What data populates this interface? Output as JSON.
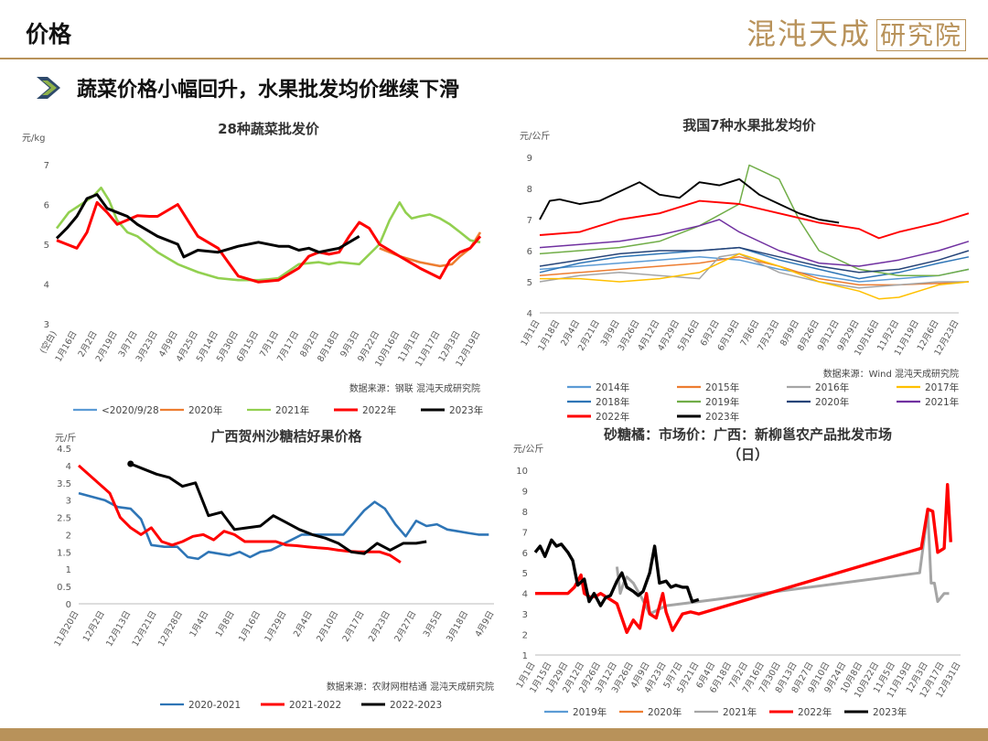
{
  "header": {
    "title": "价格",
    "logo_text": "混沌天成",
    "logo_box": "研究院"
  },
  "subheading": "蔬菜价格小幅回升，水果批发均价继续下滑",
  "colors": {
    "accent": "#b8925a",
    "title_text": "#111111",
    "arrow": "#2e4a6b"
  },
  "chart_data": [
    {
      "type": "line",
      "title": "28种蔬菜批发价",
      "ylabel": "元/kg",
      "ylim": [
        3,
        7
      ],
      "yticks": [
        "3",
        "4",
        "5",
        "6",
        "7"
      ],
      "x_tick_labels": [
        "(空白)",
        "1月16日",
        "2月2日",
        "2月19日",
        "3月7日",
        "3月23日",
        "4月9日",
        "4月25日",
        "5月14日",
        "5月30日",
        "6月15日",
        "7月1日",
        "7月17日",
        "8月2日",
        "8月18日",
        "9月3日",
        "9月22日",
        "10月16日",
        "11月1日",
        "11月17日",
        "12月3日",
        "12月19日"
      ],
      "source": "数据来源：钢联 混沌天成研究院",
      "series": [
        {
          "name": "<2020/9/28",
          "color": "#5b9bd5",
          "x": [],
          "values": []
        },
        {
          "name": "2020年",
          "color": "#ed7d31",
          "x": [
            16,
            17,
            18,
            19,
            19.6,
            20,
            20.5,
            21
          ],
          "values": [
            4.9,
            4.7,
            4.55,
            4.45,
            4.5,
            4.7,
            4.9,
            5.3
          ]
        },
        {
          "name": "2021年",
          "color": "#92d050",
          "x": [
            0,
            0.6,
            1.2,
            1.8,
            2.2,
            2.6,
            3,
            3.5,
            4,
            4.5,
            5,
            6,
            7,
            8,
            9,
            10,
            10.5,
            11,
            12,
            13,
            13.5,
            14,
            15,
            16,
            16.5,
            17,
            17.3,
            17.6,
            18,
            18.5,
            19,
            19.5,
            20,
            20.5,
            21
          ],
          "values": [
            5.4,
            5.8,
            6.0,
            6.2,
            6.42,
            6.1,
            5.6,
            5.3,
            5.2,
            5.0,
            4.8,
            4.5,
            4.3,
            4.15,
            4.1,
            4.1,
            4.12,
            4.15,
            4.5,
            4.55,
            4.5,
            4.55,
            4.5,
            5.0,
            5.6,
            6.05,
            5.8,
            5.65,
            5.7,
            5.75,
            5.65,
            5.5,
            5.3,
            5.1,
            5.05
          ]
        },
        {
          "name": "2022年",
          "color": "#ff0000",
          "x": [
            0,
            0.5,
            1,
            1.5,
            2,
            2.5,
            3,
            4,
            4.6,
            5,
            6,
            6.5,
            7,
            8,
            8.5,
            9,
            10,
            11,
            12,
            12.5,
            13,
            13.5,
            14,
            14.5,
            15,
            15.5,
            16,
            16.5,
            17,
            18,
            19,
            19.5,
            20,
            20.5,
            21
          ],
          "values": [
            5.1,
            5.0,
            4.9,
            5.3,
            6.05,
            5.8,
            5.5,
            5.72,
            5.7,
            5.7,
            6.0,
            5.6,
            5.2,
            4.9,
            4.55,
            4.2,
            4.05,
            4.1,
            4.4,
            4.7,
            4.8,
            4.75,
            4.8,
            5.2,
            5.55,
            5.4,
            5.0,
            4.85,
            4.7,
            4.4,
            4.15,
            4.6,
            4.8,
            4.9,
            5.2
          ]
        },
        {
          "name": "2023年",
          "color": "#000000",
          "x": [
            0,
            0.5,
            1,
            1.5,
            2,
            2.5,
            3,
            3.5,
            4,
            5,
            6,
            6.3,
            7,
            8,
            9,
            10,
            11,
            11.5,
            12,
            12.5,
            13,
            13.5,
            14,
            14.5,
            15
          ],
          "values": [
            5.15,
            5.4,
            5.7,
            6.15,
            6.25,
            5.9,
            5.8,
            5.7,
            5.5,
            5.2,
            5.0,
            4.68,
            4.85,
            4.8,
            4.95,
            5.05,
            4.95,
            4.95,
            4.85,
            4.9,
            4.8,
            4.85,
            4.9,
            5.05,
            5.2
          ]
        }
      ]
    },
    {
      "type": "line",
      "title": "我国7种水果批发均价",
      "ylabel": "元/公斤",
      "ylim": [
        4,
        9
      ],
      "yticks": [
        "4",
        "5",
        "6",
        "7",
        "8",
        "9"
      ],
      "x_tick_labels": [
        "1月1日",
        "1月18日",
        "2月4日",
        "2月21日",
        "3月9日",
        "3月26日",
        "4月12日",
        "4月29日",
        "5月16日",
        "6月2日",
        "6月19日",
        "7月6日",
        "7月23日",
        "8月9日",
        "8月26日",
        "9月12日",
        "9月29日",
        "10月16日",
        "11月2日",
        "11月19日",
        "12月6日",
        "12月23日"
      ],
      "source": "数据来源：Wind 混沌天成研究院",
      "series": [
        {
          "name": "2014年",
          "color": "#5b9bd5",
          "x": [
            0,
            2,
            4,
            6,
            8,
            10,
            12,
            14,
            16,
            18,
            20,
            21.5
          ],
          "values": [
            5.4,
            5.5,
            5.6,
            5.7,
            5.8,
            5.7,
            5.4,
            5.2,
            5.0,
            5.1,
            5.2,
            5.4
          ]
        },
        {
          "name": "2015年",
          "color": "#ed7d31",
          "x": [
            0,
            2,
            4,
            6,
            8,
            10,
            12,
            14,
            16,
            18,
            20,
            21.5
          ],
          "values": [
            5.2,
            5.3,
            5.4,
            5.5,
            5.6,
            5.8,
            5.5,
            5.1,
            4.9,
            4.9,
            4.95,
            5.0
          ]
        },
        {
          "name": "2016年",
          "color": "#a5a5a5",
          "x": [
            0,
            2,
            4,
            6,
            8,
            9,
            10,
            12,
            14,
            16,
            18,
            20,
            21.5
          ],
          "values": [
            5.0,
            5.2,
            5.3,
            5.2,
            5.1,
            5.8,
            5.9,
            5.3,
            5.0,
            4.8,
            4.9,
            5.0,
            5.0
          ]
        },
        {
          "name": "2017年",
          "color": "#ffc000",
          "x": [
            0,
            2,
            4,
            6,
            8,
            10,
            12,
            14,
            16,
            17,
            18,
            20,
            21.5
          ],
          "values": [
            5.1,
            5.1,
            5.0,
            5.1,
            5.3,
            5.9,
            5.5,
            5.0,
            4.7,
            4.45,
            4.5,
            4.9,
            5.0
          ]
        },
        {
          "name": "2018年",
          "color": "#2e75b6",
          "x": [
            0,
            2,
            4,
            6,
            8,
            10,
            12,
            14,
            16,
            18,
            20,
            21.5
          ],
          "values": [
            5.3,
            5.6,
            5.8,
            5.9,
            6.0,
            6.1,
            5.7,
            5.4,
            5.1,
            5.3,
            5.6,
            5.8
          ]
        },
        {
          "name": "2019年",
          "color": "#70ad47",
          "x": [
            0,
            2,
            4,
            6,
            8,
            10,
            10.5,
            11,
            12,
            13,
            14,
            16,
            18,
            20,
            21.5
          ],
          "values": [
            5.9,
            6.0,
            6.1,
            6.3,
            6.8,
            7.5,
            8.75,
            8.6,
            8.3,
            7.0,
            6.0,
            5.4,
            5.2,
            5.2,
            5.4
          ]
        },
        {
          "name": "2020年",
          "color": "#264478",
          "x": [
            0,
            2,
            4,
            6,
            8,
            10,
            12,
            14,
            16,
            18,
            20,
            21.5
          ],
          "values": [
            5.5,
            5.7,
            5.9,
            6.0,
            6.0,
            6.1,
            5.8,
            5.5,
            5.3,
            5.4,
            5.7,
            6.0
          ]
        },
        {
          "name": "2021年",
          "color": "#7030a0",
          "x": [
            0,
            2,
            4,
            6,
            8,
            9,
            10,
            12,
            14,
            16,
            18,
            20,
            21.5
          ],
          "values": [
            6.1,
            6.2,
            6.3,
            6.5,
            6.8,
            7.0,
            6.6,
            6.0,
            5.6,
            5.5,
            5.7,
            6.0,
            6.3
          ]
        },
        {
          "name": "2022年",
          "color": "#ff0000",
          "x": [
            0,
            2,
            4,
            6,
            8,
            10,
            12,
            14,
            16,
            17,
            18,
            20,
            21.5
          ],
          "values": [
            6.5,
            6.6,
            7.0,
            7.2,
            7.6,
            7.5,
            7.2,
            6.9,
            6.7,
            6.4,
            6.6,
            6.9,
            7.2
          ]
        },
        {
          "name": "2023年",
          "color": "#000000",
          "x": [
            0,
            0.5,
            1,
            2,
            3,
            4,
            5,
            6,
            7,
            8,
            9,
            10,
            11,
            12,
            13,
            14,
            15
          ],
          "values": [
            7.0,
            7.6,
            7.65,
            7.5,
            7.6,
            7.9,
            8.2,
            7.8,
            7.7,
            8.2,
            8.1,
            8.3,
            7.8,
            7.5,
            7.2,
            7.0,
            6.9
          ]
        }
      ]
    },
    {
      "type": "line",
      "title": "广西贺州沙糖桔好果价格",
      "ylabel": "元/斤",
      "ylim": [
        0,
        4.5
      ],
      "yticks": [
        "0",
        "0.5",
        "1",
        "1.5",
        "2",
        "2.5",
        "3",
        "3.5",
        "4",
        "4.5"
      ],
      "x_tick_labels": [
        "11月20日",
        "12月2日",
        "12月13日",
        "12月21日",
        "12月28日",
        "1月4日",
        "1月8日",
        "1月16日",
        "1月29日",
        "2月4日",
        "2月10日",
        "2月17日",
        "2月23日",
        "2月27日",
        "3月5日",
        "3月18日",
        "4月9日"
      ],
      "source": "数据来源：农财网柑桔通 混沌天成研究院",
      "series": [
        {
          "name": "2020-2021",
          "color": "#2e75b6",
          "x": [
            0,
            1,
            1.5,
            2,
            2.4,
            2.8,
            3.3,
            3.8,
            4.2,
            4.6,
            5,
            5.4,
            5.8,
            6.2,
            6.6,
            7,
            7.4,
            7.8,
            8.2,
            8.6,
            9,
            9.4,
            9.8,
            10.2,
            10.6,
            11,
            11.4,
            11.8,
            12.2,
            12.6,
            13,
            13.4,
            13.8,
            14.2,
            14.6,
            15,
            15.4,
            15.8
          ],
          "values": [
            3.2,
            3.0,
            2.8,
            2.75,
            2.45,
            1.7,
            1.65,
            1.65,
            1.35,
            1.3,
            1.5,
            1.45,
            1.4,
            1.5,
            1.35,
            1.5,
            1.55,
            1.7,
            1.85,
            2.0,
            2.0,
            2.0,
            2.0,
            2.0,
            2.35,
            2.7,
            2.95,
            2.75,
            2.3,
            1.95,
            2.4,
            2.25,
            2.3,
            2.15,
            2.1,
            2.05,
            2.0,
            2.0
          ]
        },
        {
          "name": "2021-2022",
          "color": "#ff0000",
          "x": [
            0,
            1.2,
            1.6,
            2,
            2.4,
            2.8,
            3.2,
            3.6,
            4,
            4.4,
            4.8,
            5.2,
            5.6,
            6,
            6.4,
            6.8,
            7.2,
            7.6,
            8,
            8.4,
            8.8,
            9.2,
            9.6,
            10,
            10.4,
            10.8,
            11.2,
            11.6,
            12,
            12.4
          ],
          "values": [
            4.0,
            3.2,
            2.5,
            2.2,
            2.0,
            2.2,
            1.8,
            1.7,
            1.8,
            1.95,
            2.0,
            1.85,
            2.1,
            2.0,
            1.8,
            1.8,
            1.8,
            1.8,
            1.7,
            1.68,
            1.65,
            1.62,
            1.6,
            1.55,
            1.52,
            1.5,
            1.5,
            1.5,
            1.4,
            1.2
          ]
        },
        {
          "name": "2022-2023",
          "color": "#000000",
          "x": [
            2,
            2.5,
            3,
            3.5,
            4,
            4.5,
            5,
            5.5,
            6,
            6.5,
            7,
            7.5,
            8,
            8.5,
            9,
            9.5,
            10,
            10.5,
            11,
            11.5,
            12,
            12.5,
            13,
            13.4
          ],
          "values": [
            4.05,
            3.9,
            3.75,
            3.65,
            3.4,
            3.5,
            2.55,
            2.65,
            2.15,
            2.2,
            2.25,
            2.55,
            2.35,
            2.15,
            2.0,
            1.9,
            1.75,
            1.5,
            1.45,
            1.75,
            1.55,
            1.75,
            1.75,
            1.8
          ]
        }
      ]
    },
    {
      "type": "line",
      "title": "砂糖橘：市场价：广西：新柳邕农产品批发市场",
      "subtitle": "（日）",
      "ylabel": "元/公斤",
      "ylim": [
        1,
        10
      ],
      "yticks": [
        "1",
        "2",
        "3",
        "4",
        "5",
        "6",
        "7",
        "8",
        "9",
        "10"
      ],
      "x_tick_labels": [
        "1月1日",
        "1月15日",
        "1月29日",
        "2月12日",
        "2月26日",
        "3月12日",
        "3月26日",
        "4月9日",
        "4月23日",
        "5月7日",
        "5月21日",
        "6月4日",
        "6月18日",
        "7月2日",
        "7月16日",
        "7月30日",
        "8月13日",
        "8月27日",
        "9月10日",
        "9月24日",
        "10月8日",
        "10月22日",
        "11月5日",
        "11月19日",
        "12月3日",
        "12月17日",
        "12月31日"
      ],
      "series": [
        {
          "name": "2019年",
          "color": "#5b9bd5",
          "x": [],
          "values": []
        },
        {
          "name": "2020年",
          "color": "#ed7d31",
          "x": [],
          "values": []
        },
        {
          "name": "2021年",
          "color": "#a5a5a5",
          "x": [
            5,
            5.2,
            5.4,
            5.6,
            6,
            6.5,
            7,
            7.5,
            8,
            9,
            10,
            11,
            23.5,
            24,
            24.2,
            24.4,
            24.6,
            25,
            25.3
          ],
          "values": [
            5.3,
            4.0,
            4.5,
            4.8,
            4.5,
            3.8,
            3.0,
            3.2,
            3.4,
            3.5,
            3.6,
            3.7,
            5.0,
            8.0,
            4.5,
            4.5,
            3.6,
            4.0,
            4.0
          ]
        },
        {
          "name": "2022年",
          "color": "#ff0000",
          "x": [
            0,
            1,
            2,
            2.4,
            2.8,
            3,
            3.4,
            3.8,
            4,
            4.4,
            5,
            5.6,
            6,
            6.4,
            6.8,
            7,
            7.4,
            7.8,
            8,
            8.4,
            9,
            9.5,
            10,
            23.6,
            24,
            24.3,
            24.6,
            25,
            25.2,
            25.4
          ],
          "values": [
            4.0,
            4.0,
            4.0,
            4.3,
            4.9,
            4.0,
            3.8,
            3.9,
            4.0,
            3.8,
            3.5,
            2.1,
            2.7,
            2.3,
            4.0,
            3.0,
            2.8,
            4.0,
            3.1,
            2.2,
            3.0,
            3.1,
            3.0,
            6.2,
            8.1,
            8.0,
            6.0,
            6.2,
            9.3,
            6.5
          ]
        },
        {
          "name": "2023年",
          "color": "#000000",
          "x": [
            0,
            0.3,
            0.6,
            1,
            1.3,
            1.6,
            2,
            2.3,
            2.6,
            3,
            3.3,
            3.6,
            4,
            4.3,
            4.6,
            5,
            5.3,
            5.6,
            6,
            6.3,
            6.6,
            7,
            7.3,
            7.6,
            8,
            8.3,
            8.6,
            9,
            9.3,
            9.6,
            10
          ],
          "values": [
            6.0,
            6.3,
            5.8,
            6.6,
            6.3,
            6.4,
            6.0,
            5.6,
            4.4,
            4.7,
            3.6,
            4.0,
            3.4,
            3.8,
            3.9,
            4.6,
            5.0,
            4.3,
            4.1,
            3.9,
            4.1,
            5.0,
            6.3,
            4.5,
            4.6,
            4.3,
            4.4,
            4.3,
            4.3,
            3.6,
            3.7
          ]
        }
      ]
    }
  ]
}
